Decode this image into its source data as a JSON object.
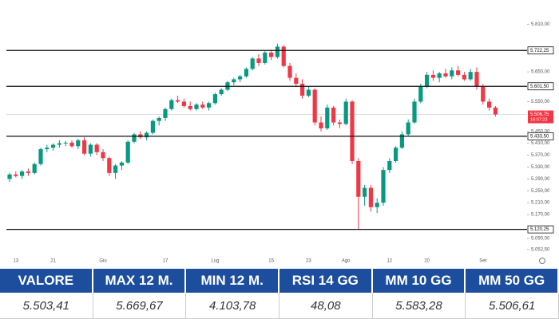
{
  "chart_data": {
    "type": "candlestick",
    "categories": [
      null,
      "13",
      null,
      null,
      null,
      null,
      null,
      "21",
      null,
      null,
      null,
      null,
      null,
      null,
      null,
      "Giu",
      null,
      null,
      null,
      null,
      null,
      null,
      null,
      null,
      null,
      "17",
      null,
      null,
      null,
      null,
      null,
      null,
      null,
      "Lug",
      null,
      null,
      null,
      null,
      null,
      null,
      null,
      null,
      "15",
      null,
      null,
      null,
      null,
      null,
      "23",
      null,
      null,
      null,
      null,
      null,
      "Ago",
      null,
      null,
      null,
      null,
      null,
      null,
      "12",
      null,
      null,
      null,
      null,
      null,
      "20",
      null,
      null,
      null,
      null,
      null,
      null,
      null,
      null,
      "Set",
      null,
      null
    ],
    "open": [
      5290,
      5305,
      5300,
      5315,
      5310,
      5340,
      5390,
      5395,
      5405,
      5410,
      5412,
      5400,
      5420,
      5375,
      5405,
      5380,
      5360,
      5310,
      5335,
      5345,
      5415,
      5440,
      5430,
      5445,
      5485,
      5495,
      5525,
      5555,
      5550,
      5535,
      5525,
      5540,
      5530,
      5545,
      5575,
      5590,
      5615,
      5625,
      5635,
      5660,
      5695,
      5680,
      5715,
      5700,
      5735,
      5670,
      5630,
      5610,
      5570,
      5590,
      5480,
      5460,
      5530,
      5480,
      5475,
      5550,
      5350,
      5230,
      5260,
      5195,
      5210,
      5320,
      5350,
      5395,
      5440,
      5480,
      5550,
      5600,
      5640,
      5630,
      5645,
      5635,
      5655,
      5640,
      5625,
      5650,
      5600,
      5550,
      5530
    ],
    "high": [
      5310,
      5315,
      5320,
      5325,
      5345,
      5395,
      5405,
      5410,
      5420,
      5418,
      5420,
      5425,
      5430,
      5410,
      5410,
      5390,
      5365,
      5340,
      5350,
      5420,
      5445,
      5450,
      5450,
      5490,
      5500,
      5530,
      5560,
      5570,
      5560,
      5550,
      5545,
      5550,
      5550,
      5580,
      5595,
      5620,
      5630,
      5640,
      5665,
      5700,
      5710,
      5720,
      5725,
      5745,
      5740,
      5680,
      5645,
      5625,
      5600,
      5595,
      5500,
      5540,
      5535,
      5490,
      5560,
      5555,
      5360,
      5270,
      5270,
      5225,
      5330,
      5360,
      5400,
      5450,
      5490,
      5560,
      5610,
      5650,
      5655,
      5650,
      5660,
      5665,
      5670,
      5650,
      5660,
      5665,
      5610,
      5560,
      5535
    ],
    "low": [
      5280,
      5295,
      5290,
      5300,
      5305,
      5335,
      5380,
      5385,
      5395,
      5400,
      5395,
      5390,
      5370,
      5365,
      5370,
      5350,
      5300,
      5290,
      5320,
      5340,
      5410,
      5425,
      5420,
      5440,
      5470,
      5485,
      5520,
      5545,
      5530,
      5520,
      5520,
      5525,
      5520,
      5540,
      5570,
      5585,
      5605,
      5615,
      5630,
      5655,
      5670,
      5675,
      5690,
      5695,
      5665,
      5620,
      5600,
      5560,
      5565,
      5470,
      5450,
      5455,
      5470,
      5460,
      5470,
      5340,
      5120,
      5200,
      5180,
      5175,
      5200,
      5310,
      5345,
      5390,
      5435,
      5475,
      5545,
      5595,
      5620,
      5615,
      5630,
      5625,
      5635,
      5620,
      5620,
      5590,
      5540,
      5520,
      5500
    ],
    "close": [
      5305,
      5300,
      5315,
      5310,
      5340,
      5390,
      5395,
      5405,
      5410,
      5412,
      5400,
      5420,
      5375,
      5405,
      5380,
      5360,
      5310,
      5335,
      5345,
      5415,
      5440,
      5430,
      5445,
      5485,
      5495,
      5525,
      5555,
      5550,
      5535,
      5525,
      5540,
      5530,
      5545,
      5575,
      5590,
      5615,
      5625,
      5635,
      5660,
      5695,
      5680,
      5715,
      5700,
      5735,
      5670,
      5630,
      5610,
      5570,
      5590,
      5480,
      5460,
      5530,
      5480,
      5475,
      5550,
      5350,
      5230,
      5260,
      5195,
      5210,
      5320,
      5350,
      5395,
      5440,
      5480,
      5550,
      5600,
      5640,
      5630,
      5645,
      5635,
      5655,
      5640,
      5625,
      5650,
      5600,
      5550,
      5530,
      5507
    ],
    "up_color": "#089981",
    "down_color": "#f23645",
    "ylim": [
      5020,
      5865
    ],
    "yticks": [
      {
        "value": 5810,
        "label": "5.810,00"
      },
      {
        "value": 5650,
        "label": "5.650,00"
      },
      {
        "value": 5550,
        "label": "5.550,00"
      },
      {
        "value": 5450,
        "label": "5.450,00"
      },
      {
        "value": 5410,
        "label": "5.410,00"
      },
      {
        "value": 5370,
        "label": "5.370,00"
      },
      {
        "value": 5330,
        "label": "5.330,00"
      },
      {
        "value": 5290,
        "label": "5.290,00"
      },
      {
        "value": 5250,
        "label": "5.250,00"
      },
      {
        "value": 5210,
        "label": "5.210,00"
      },
      {
        "value": 5170,
        "label": "5.170,00"
      },
      {
        "value": 5090,
        "label": "5.090,00"
      },
      {
        "value": 5052.5,
        "label": "5.052,50"
      }
    ],
    "levels": [
      {
        "value": 5722.25,
        "label": "5.722,25"
      },
      {
        "value": 5601.5,
        "label": "5.601,50"
      },
      {
        "value": 5433.5,
        "label": "5.433,50"
      },
      {
        "value": 5120.25,
        "label": "5.120,25"
      }
    ],
    "last": {
      "value": 5506.75,
      "label": "5.506,75",
      "time": "16:07:23"
    }
  },
  "table": {
    "headers": [
      "VALORE",
      "MAX 12 M.",
      "MIN 12 M.",
      "RSI 14 GG",
      "MM 10 GG",
      "MM 50 GG"
    ],
    "values": [
      "5.503,41",
      "5.669,67",
      "4.103,78",
      "48,08",
      "5.583,28",
      "5.506,61"
    ]
  }
}
